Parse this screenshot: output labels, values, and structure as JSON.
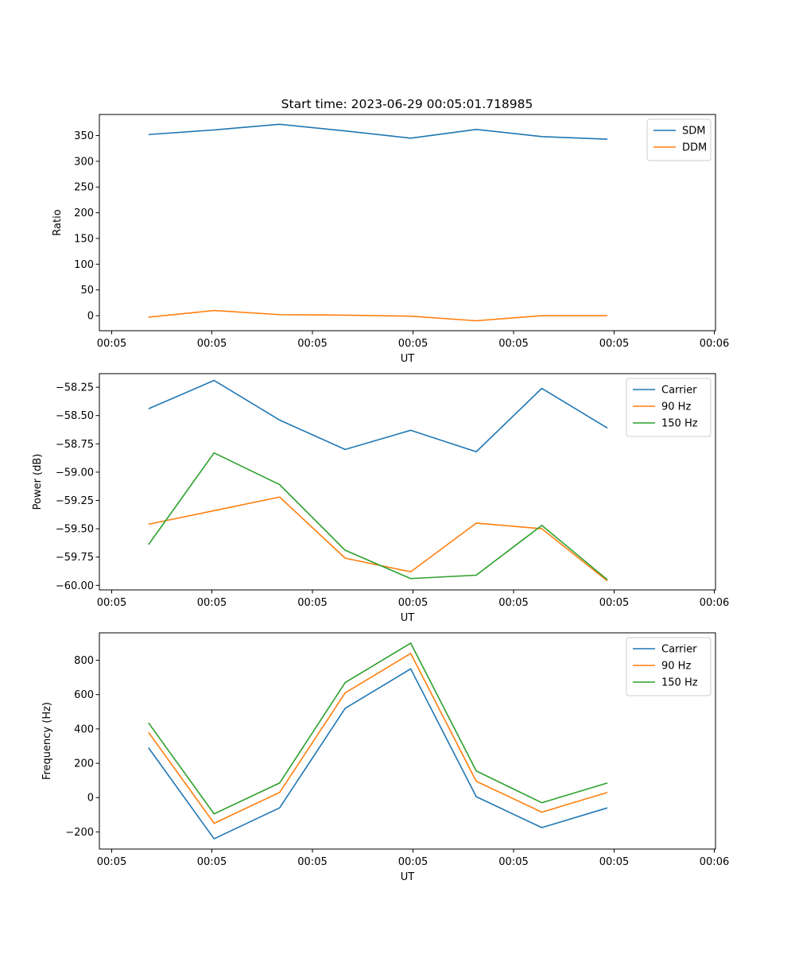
{
  "title": "Start time: 2023-06-29 00:05:01.718985",
  "colors": {
    "blue": "#1f77b4",
    "orange": "#ff7f0e",
    "green": "#2ca02c",
    "frame": "#000000",
    "legend_border": "#cccccc"
  },
  "chart_data": [
    {
      "type": "line",
      "xlabel": "UT",
      "ylabel": "Ratio",
      "x_tick_labels": [
        "00:05",
        "00:05",
        "00:05",
        "00:05",
        "00:05",
        "00:05",
        "00:06"
      ],
      "y_ticks": [
        0,
        50,
        100,
        150,
        200,
        250,
        300,
        350
      ],
      "y_tick_labels": [
        "0",
        "50",
        "100",
        "150",
        "200",
        "250",
        "300",
        "350"
      ],
      "ylim": [
        -29.3,
        391
      ],
      "xlim": [
        -0.4,
        9.0
      ],
      "x": [
        0.35,
        1.35,
        2.35,
        3.35,
        4.35,
        5.35,
        6.35,
        7.35
      ],
      "legend": "top-right",
      "grid": false,
      "series": [
        {
          "name": "SDM",
          "color": "#1f77b4",
          "values": [
            352,
            361,
            372,
            359,
            345,
            362,
            348,
            343
          ]
        },
        {
          "name": "DDM",
          "color": "#ff7f0e",
          "values": [
            -3,
            10,
            2,
            1,
            -1,
            -10,
            0,
            0
          ]
        }
      ]
    },
    {
      "type": "line",
      "xlabel": "UT",
      "ylabel": "Power (dB)",
      "x_tick_labels": [
        "00:05",
        "00:05",
        "00:05",
        "00:05",
        "00:05",
        "00:05",
        "00:06"
      ],
      "y_ticks": [
        -60.0,
        -59.75,
        -59.5,
        -59.25,
        -59.0,
        -58.75,
        -58.5,
        -58.25
      ],
      "y_tick_labels": [
        "−60.00",
        "−59.75",
        "−59.50",
        "−59.25",
        "−59.00",
        "−58.75",
        "−58.50",
        "−58.25"
      ],
      "ylim": [
        -60.04,
        -58.13
      ],
      "xlim": [
        -0.4,
        9.0
      ],
      "x": [
        0.35,
        1.35,
        2.35,
        3.35,
        4.35,
        5.35,
        6.35,
        7.35
      ],
      "legend": "top-right",
      "grid": false,
      "series": [
        {
          "name": "Carrier",
          "color": "#1f77b4",
          "values": [
            -58.44,
            -58.19,
            -58.54,
            -58.8,
            -58.63,
            -58.82,
            -58.26,
            -58.61
          ]
        },
        {
          "name": "90 Hz",
          "color": "#ff7f0e",
          "values": [
            -59.46,
            -59.34,
            -59.22,
            -59.76,
            -59.88,
            -59.45,
            -59.5,
            -59.96
          ]
        },
        {
          "name": "150 Hz",
          "color": "#2ca02c",
          "values": [
            -59.64,
            -58.83,
            -59.11,
            -59.69,
            -59.94,
            -59.91,
            -59.47,
            -59.95
          ]
        }
      ]
    },
    {
      "type": "line",
      "xlabel": "UT",
      "ylabel": "Frequency (Hz)",
      "x_tick_labels": [
        "00:05",
        "00:05",
        "00:05",
        "00:05",
        "00:05",
        "00:05",
        "00:06"
      ],
      "y_ticks": [
        -200,
        0,
        200,
        400,
        600,
        800
      ],
      "y_tick_labels": [
        "−200",
        "0",
        "200",
        "400",
        "600",
        "800"
      ],
      "ylim": [
        -300,
        960
      ],
      "xlim": [
        -0.4,
        9.0
      ],
      "x": [
        0.35,
        1.35,
        2.35,
        3.35,
        4.35,
        5.35,
        6.35,
        7.35
      ],
      "legend": "top-right",
      "grid": false,
      "series": [
        {
          "name": "Carrier",
          "color": "#1f77b4",
          "values": [
            290,
            -240,
            -60,
            520,
            750,
            5,
            -175,
            -60
          ]
        },
        {
          "name": "90 Hz",
          "color": "#ff7f0e",
          "values": [
            380,
            -150,
            30,
            610,
            840,
            95,
            -85,
            30
          ]
        },
        {
          "name": "150 Hz",
          "color": "#2ca02c",
          "values": [
            435,
            -95,
            85,
            670,
            900,
            155,
            -30,
            85
          ]
        }
      ]
    }
  ]
}
